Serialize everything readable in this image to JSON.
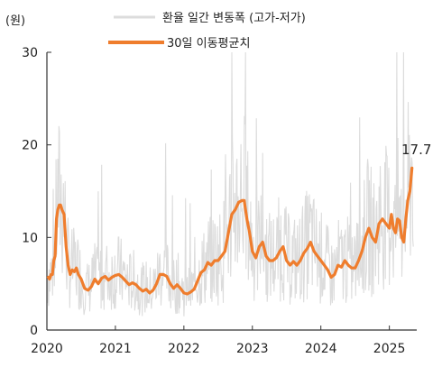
{
  "chart_data": {
    "type": "line",
    "unit_label": "(원)",
    "ylim": [
      0,
      30
    ],
    "y_ticks": [
      0,
      10,
      20,
      30
    ],
    "x_ticks": [
      "2020",
      "2021",
      "2022",
      "2023",
      "2024",
      "2025"
    ],
    "end_label": "17.7",
    "legend": [
      {
        "name": "환율 일간 변동폭 (고가-저가)",
        "color": "#dcdcdc"
      },
      {
        "name": "30일 이동평균치",
        "color": "#ef7d2d"
      }
    ],
    "series": [
      {
        "name": "30일 이동평균치",
        "color": "#ef7d2d",
        "x": [
          2020.02,
          2020.04,
          2020.06,
          2020.08,
          2020.1,
          2020.12,
          2020.14,
          2020.16,
          2020.18,
          2020.2,
          2020.22,
          2020.25,
          2020.28,
          2020.31,
          2020.34,
          2020.37,
          2020.4,
          2020.43,
          2020.46,
          2020.5,
          2020.55,
          2020.6,
          2020.65,
          2020.7,
          2020.75,
          2020.8,
          2020.85,
          2020.9,
          2020.95,
          2021.0,
          2021.05,
          2021.1,
          2021.15,
          2021.2,
          2021.25,
          2021.3,
          2021.35,
          2021.4,
          2021.45,
          2021.5,
          2021.55,
          2021.6,
          2021.65,
          2021.7,
          2021.75,
          2021.8,
          2021.85,
          2021.9,
          2021.95,
          2022.0,
          2022.05,
          2022.1,
          2022.15,
          2022.2,
          2022.25,
          2022.3,
          2022.35,
          2022.4,
          2022.45,
          2022.5,
          2022.55,
          2022.6,
          2022.65,
          2022.7,
          2022.75,
          2022.8,
          2022.85,
          2022.88,
          2022.92,
          2022.96,
          2023.0,
          2023.05,
          2023.1,
          2023.15,
          2023.2,
          2023.25,
          2023.3,
          2023.35,
          2023.4,
          2023.45,
          2023.5,
          2023.55,
          2023.6,
          2023.65,
          2023.7,
          2023.75,
          2023.8,
          2023.85,
          2023.9,
          2023.95,
          2024.0,
          2024.05,
          2024.1,
          2024.15,
          2024.2,
          2024.25,
          2024.3,
          2024.35,
          2024.4,
          2024.45,
          2024.5,
          2024.55,
          2024.6,
          2024.65,
          2024.7,
          2024.75,
          2024.8,
          2024.85,
          2024.9,
          2024.95,
          2025.0,
          2025.03,
          2025.06,
          2025.09,
          2025.12,
          2025.15,
          2025.18,
          2025.21,
          2025.24,
          2025.27,
          2025.3,
          2025.33
        ],
        "values": [
          5.7,
          5.5,
          6.0,
          6.0,
          7.5,
          8.0,
          12.0,
          13.0,
          13.5,
          13.5,
          13.0,
          12.5,
          9.0,
          7.0,
          6.0,
          6.5,
          6.3,
          6.7,
          6.0,
          5.5,
          4.5,
          4.3,
          4.7,
          5.5,
          5.0,
          5.6,
          5.8,
          5.4,
          5.7,
          5.9,
          6.0,
          5.7,
          5.3,
          4.9,
          5.1,
          4.9,
          4.5,
          4.2,
          4.4,
          4.0,
          4.3,
          5.0,
          6.0,
          6.0,
          5.8,
          5.0,
          4.5,
          4.9,
          4.5,
          4.0,
          3.9,
          4.1,
          4.4,
          5.3,
          6.2,
          6.5,
          7.3,
          7.0,
          7.5,
          7.5,
          8.0,
          8.5,
          10.5,
          12.5,
          13.0,
          13.8,
          14.0,
          14.0,
          12.0,
          10.5,
          8.5,
          7.8,
          9.0,
          9.5,
          8.0,
          7.5,
          7.5,
          7.8,
          8.5,
          9.0,
          7.5,
          7.0,
          7.4,
          7.0,
          7.5,
          8.3,
          8.8,
          9.5,
          8.5,
          8.0,
          7.5,
          7.0,
          6.5,
          5.7,
          6.0,
          7.0,
          6.8,
          7.5,
          7.0,
          6.7,
          6.7,
          7.5,
          8.5,
          10.0,
          11.0,
          10.0,
          9.5,
          11.5,
          12.0,
          11.5,
          11.0,
          12.5,
          11.0,
          10.5,
          12.0,
          11.8,
          10.0,
          9.5,
          12.0,
          14.0,
          15.0,
          17.5
        ]
      }
    ],
    "daily_range": {
      "name": "환율 일간 변동폭 (고가-저가)",
      "color": "#dcdcdc",
      "samples_per_year": 120,
      "x_start": 2020.0,
      "x_end": 2025.35
    }
  }
}
